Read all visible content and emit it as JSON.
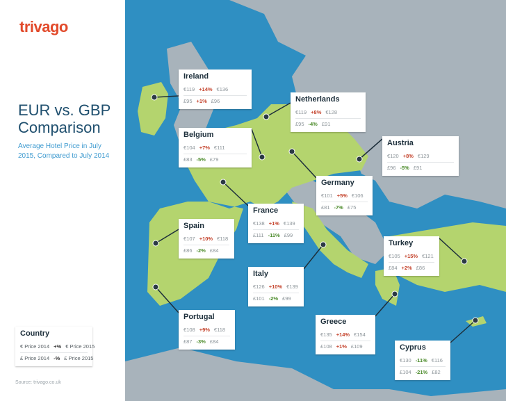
{
  "header": {
    "logo": "trivago",
    "title": "EUR vs. GBP Comparison",
    "subtitle": "Average Hotel Price in July 2015, Compared to July 2014"
  },
  "legend": {
    "title": "Country",
    "eur": [
      "€ Price 2014",
      "+%",
      "€ Price 2015"
    ],
    "gbp": [
      "£ Price 2014",
      "-%",
      "£ Price 2015"
    ]
  },
  "countries": [
    {
      "name": "Ireland",
      "eur": [
        "€119",
        "+14%",
        "€136"
      ],
      "gbp": [
        "£95",
        "+1%",
        "£96"
      ]
    },
    {
      "name": "Netherlands",
      "eur": [
        "€119",
        "+8%",
        "€128"
      ],
      "gbp": [
        "£95",
        "-4%",
        "£91"
      ]
    },
    {
      "name": "Belgium",
      "eur": [
        "€104",
        "+7%",
        "€111"
      ],
      "gbp": [
        "£83",
        "-5%",
        "£79"
      ]
    },
    {
      "name": "Austria",
      "eur": [
        "€120",
        "+8%",
        "€129"
      ],
      "gbp": [
        "£96",
        "-5%",
        "£91"
      ]
    },
    {
      "name": "Germany",
      "eur": [
        "€101",
        "+5%",
        "€106"
      ],
      "gbp": [
        "£81",
        "-7%",
        "£75"
      ]
    },
    {
      "name": "France",
      "eur": [
        "€138",
        "+1%",
        "€139"
      ],
      "gbp": [
        "£111",
        "-11%",
        "£99"
      ]
    },
    {
      "name": "Spain",
      "eur": [
        "€107",
        "+10%",
        "€118"
      ],
      "gbp": [
        "£86",
        "-2%",
        "£84"
      ]
    },
    {
      "name": "Turkey",
      "eur": [
        "€105",
        "+15%",
        "€121"
      ],
      "gbp": [
        "£84",
        "+2%",
        "£86"
      ]
    },
    {
      "name": "Italy",
      "eur": [
        "€126",
        "+10%",
        "€139"
      ],
      "gbp": [
        "£101",
        "-2%",
        "£99"
      ]
    },
    {
      "name": "Portugal",
      "eur": [
        "€108",
        "+9%",
        "€118"
      ],
      "gbp": [
        "£87",
        "-3%",
        "£84"
      ]
    },
    {
      "name": "Greece",
      "eur": [
        "€135",
        "+14%",
        "€154"
      ],
      "gbp": [
        "£108",
        "+1%",
        "£109"
      ]
    },
    {
      "name": "Cyprus",
      "eur": [
        "€130",
        "-11%",
        "€116"
      ],
      "gbp": [
        "£104",
        "-21%",
        "£82"
      ]
    }
  ],
  "source": "Source: trivago.co.uk"
}
